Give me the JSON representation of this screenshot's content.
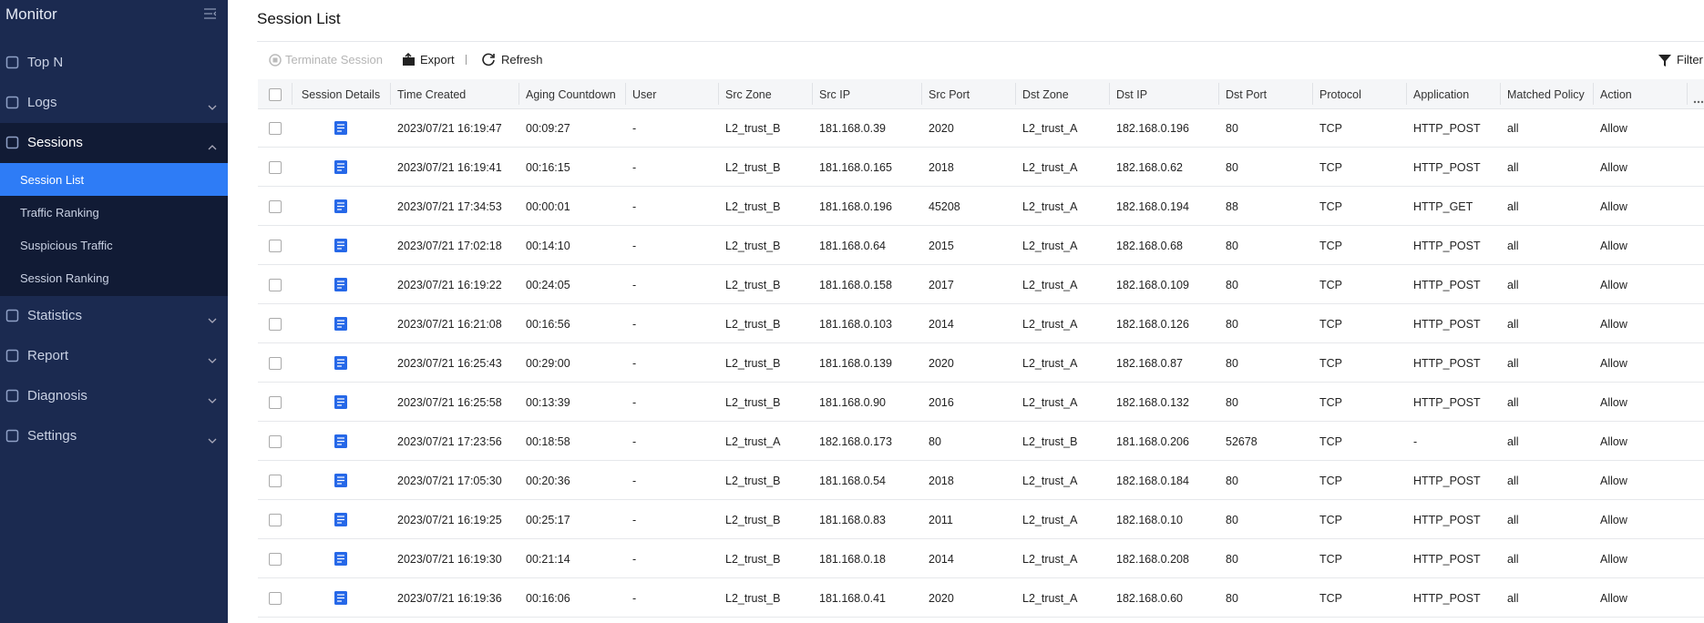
{
  "sidebar": {
    "title": "Monitor",
    "items": [
      {
        "label": "Top N"
      },
      {
        "label": "Logs",
        "expandable": true
      },
      {
        "label": "Sessions",
        "expandable": true,
        "expanded": true,
        "children": [
          "Session List",
          "Traffic Ranking",
          "Suspicious Traffic",
          "Session Ranking"
        ],
        "active_child": 0
      },
      {
        "label": "Statistics",
        "expandable": true
      },
      {
        "label": "Report",
        "expandable": true
      },
      {
        "label": "Diagnosis",
        "expandable": true
      },
      {
        "label": "Settings",
        "expandable": true
      }
    ]
  },
  "page": {
    "title": "Session List"
  },
  "toolbar": {
    "terminate": "Terminate Session",
    "export": "Export",
    "refresh": "Refresh",
    "filter": "Filter"
  },
  "table": {
    "headers": [
      "Session Details",
      "Time Created",
      "Aging Countdown",
      "User",
      "Src Zone",
      "Src IP",
      "Src Port",
      "Dst Zone",
      "Dst IP",
      "Dst Port",
      "Protocol",
      "Application",
      "Matched Policy",
      "Action"
    ],
    "rows": [
      [
        "2023/07/21 16:19:47",
        "00:09:27",
        "-",
        "L2_trust_B",
        "181.168.0.39",
        "2020",
        "L2_trust_A",
        "182.168.0.196",
        "80",
        "TCP",
        "HTTP_POST",
        "all",
        "Allow"
      ],
      [
        "2023/07/21 16:19:41",
        "00:16:15",
        "-",
        "L2_trust_B",
        "181.168.0.165",
        "2018",
        "L2_trust_A",
        "182.168.0.62",
        "80",
        "TCP",
        "HTTP_POST",
        "all",
        "Allow"
      ],
      [
        "2023/07/21 17:34:53",
        "00:00:01",
        "-",
        "L2_trust_B",
        "181.168.0.196",
        "45208",
        "L2_trust_A",
        "182.168.0.194",
        "88",
        "TCP",
        "HTTP_GET",
        "all",
        "Allow"
      ],
      [
        "2023/07/21 17:02:18",
        "00:14:10",
        "-",
        "L2_trust_B",
        "181.168.0.64",
        "2015",
        "L2_trust_A",
        "182.168.0.68",
        "80",
        "TCP",
        "HTTP_POST",
        "all",
        "Allow"
      ],
      [
        "2023/07/21 16:19:22",
        "00:24:05",
        "-",
        "L2_trust_B",
        "181.168.0.158",
        "2017",
        "L2_trust_A",
        "182.168.0.109",
        "80",
        "TCP",
        "HTTP_POST",
        "all",
        "Allow"
      ],
      [
        "2023/07/21 16:21:08",
        "00:16:56",
        "-",
        "L2_trust_B",
        "181.168.0.103",
        "2014",
        "L2_trust_A",
        "182.168.0.126",
        "80",
        "TCP",
        "HTTP_POST",
        "all",
        "Allow"
      ],
      [
        "2023/07/21 16:25:43",
        "00:29:00",
        "-",
        "L2_trust_B",
        "181.168.0.139",
        "2020",
        "L2_trust_A",
        "182.168.0.87",
        "80",
        "TCP",
        "HTTP_POST",
        "all",
        "Allow"
      ],
      [
        "2023/07/21 16:25:58",
        "00:13:39",
        "-",
        "L2_trust_B",
        "181.168.0.90",
        "2016",
        "L2_trust_A",
        "182.168.0.132",
        "80",
        "TCP",
        "HTTP_POST",
        "all",
        "Allow"
      ],
      [
        "2023/07/21 17:23:56",
        "00:18:58",
        "-",
        "L2_trust_A",
        "182.168.0.173",
        "80",
        "L2_trust_B",
        "181.168.0.206",
        "52678",
        "TCP",
        "-",
        "all",
        "Allow"
      ],
      [
        "2023/07/21 17:05:30",
        "00:20:36",
        "-",
        "L2_trust_B",
        "181.168.0.54",
        "2018",
        "L2_trust_A",
        "182.168.0.184",
        "80",
        "TCP",
        "HTTP_POST",
        "all",
        "Allow"
      ],
      [
        "2023/07/21 16:19:25",
        "00:25:17",
        "-",
        "L2_trust_B",
        "181.168.0.83",
        "2011",
        "L2_trust_A",
        "182.168.0.10",
        "80",
        "TCP",
        "HTTP_POST",
        "all",
        "Allow"
      ],
      [
        "2023/07/21 16:19:30",
        "00:21:14",
        "-",
        "L2_trust_B",
        "181.168.0.18",
        "2014",
        "L2_trust_A",
        "182.168.0.208",
        "80",
        "TCP",
        "HTTP_POST",
        "all",
        "Allow"
      ],
      [
        "2023/07/21 16:19:36",
        "00:16:06",
        "-",
        "L2_trust_B",
        "181.168.0.41",
        "2020",
        "L2_trust_A",
        "182.168.0.60",
        "80",
        "TCP",
        "HTTP_POST",
        "all",
        "Allow"
      ]
    ]
  }
}
